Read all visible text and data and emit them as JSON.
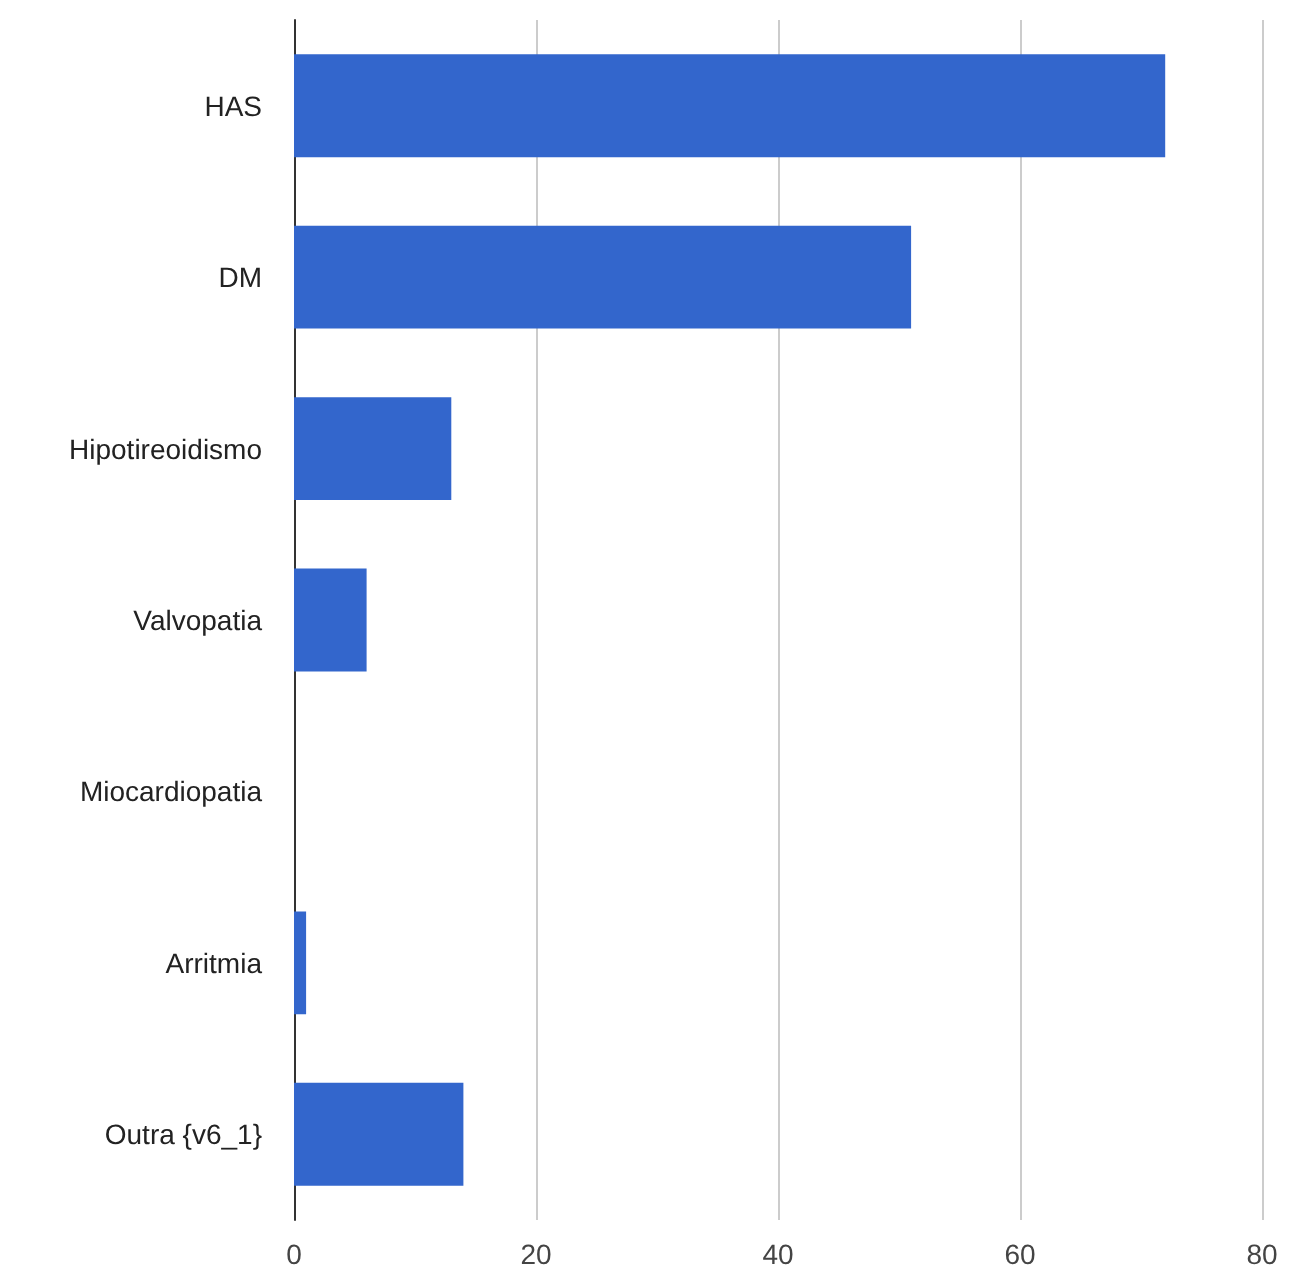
{
  "chart_data": {
    "type": "bar",
    "orientation": "horizontal",
    "categories": [
      "HAS",
      "DM",
      "Hipotireoidismo",
      "Valvopatia",
      "Miocardiopatia",
      "Arritmia",
      "Outra {v6_1}"
    ],
    "values": [
      72,
      51,
      13,
      6,
      0,
      1,
      14
    ],
    "color": "#3366cc",
    "xlim": [
      0,
      80
    ],
    "xticks": [
      0,
      20,
      40,
      60,
      80
    ],
    "grid": "x"
  }
}
